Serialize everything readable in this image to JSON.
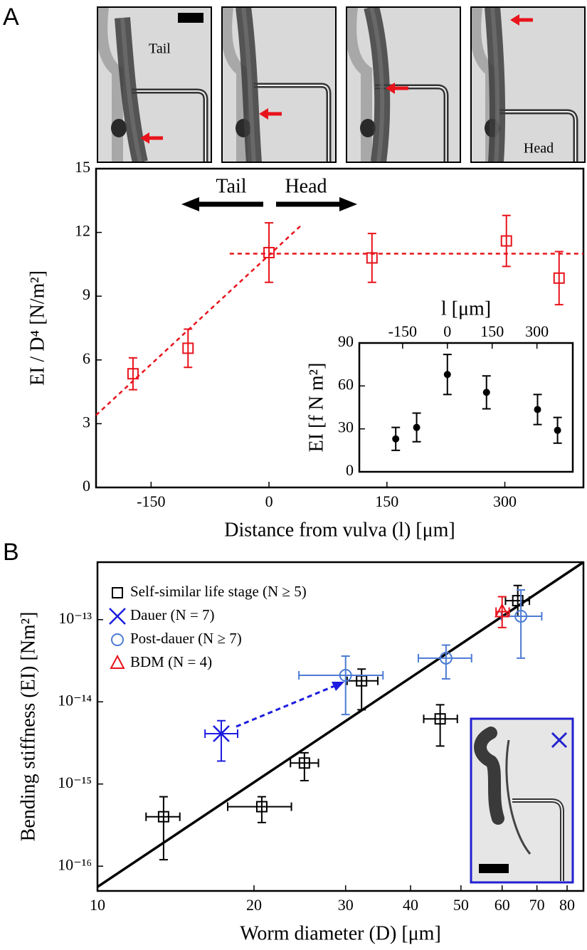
{
  "panel_labels": [
    "A",
    "B"
  ],
  "micrographs": {
    "labels": [
      "Tail",
      "Head"
    ]
  },
  "chart_data": [
    {
      "type": "scatter",
      "x_label": "Distance from vulva (l) [μm]",
      "y_label": "EI / D⁴ [N/m²]",
      "x": [
        -173,
        -103,
        0,
        131,
        302,
        369
      ],
      "values": [
        5.35,
        6.55,
        11.05,
        10.8,
        11.6,
        9.85
      ],
      "errors": [
        0.75,
        0.9,
        1.4,
        1.15,
        1.2,
        1.25
      ],
      "color": "#e8131b",
      "marker": "square",
      "xlim": [
        -220,
        400
      ],
      "ylim": [
        0,
        15
      ],
      "xticks": [
        -150,
        0,
        150,
        300
      ],
      "yticks": [
        0,
        3,
        6,
        9,
        12,
        15
      ],
      "annotations": {
        "tail": "Tail",
        "head": "Head"
      },
      "fit_lines": [
        {
          "x": [
            -220,
            40
          ],
          "y": [
            3.4,
            12.3
          ]
        },
        {
          "x": [
            -50,
            400
          ],
          "y": [
            11,
            11
          ]
        }
      ]
    },
    {
      "type": "scatter",
      "x_label": "l [μm]",
      "y_label": "EI [f N m²]",
      "x": [
        -173,
        -103,
        0,
        131,
        302,
        369
      ],
      "values": [
        23,
        31,
        68,
        55.5,
        43.5,
        29
      ],
      "errors": [
        8,
        10,
        14,
        11.5,
        10.5,
        9
      ],
      "color": "#000000",
      "marker": "dot",
      "xlim": [
        -295,
        420
      ],
      "ylim": [
        0,
        90
      ],
      "xticks": [
        -150,
        0,
        150,
        300
      ],
      "yticks": [
        0,
        30,
        60,
        90
      ]
    },
    {
      "type": "scatter",
      "x_label": "Worm diameter (D) [μm]",
      "y_label": "Bending stiffness (EI) [Nm²]",
      "log_x": true,
      "log_y": true,
      "legend": "upper left",
      "xlim": [
        10,
        86
      ],
      "ylim": [
        5e-17,
        5e-13
      ],
      "xticks": [
        10,
        20,
        30,
        40,
        50,
        60,
        70,
        80
      ],
      "yticks": [
        {
          "value": 1e-16,
          "label": "10⁻¹⁶"
        },
        {
          "value": 1e-15,
          "label": "10⁻¹⁵"
        },
        {
          "value": 1e-14,
          "label": "10⁻¹⁴"
        },
        {
          "value": 1e-13,
          "label": "10⁻¹³"
        }
      ],
      "fit_line": {
        "x": [
          10,
          86
        ],
        "y": [
          5.6e-17,
          5e-13
        ],
        "color": "#000000"
      },
      "series": [
        {
          "name": "Self-similar life stage (N ≥ 5)",
          "color": "#000000",
          "marker": "square",
          "x": [
            13.4,
            20.7,
            25.0,
            32.2,
            45.6,
            64.3
          ],
          "values": [
            4e-16,
            5.3e-16,
            1.8e-15,
            1.8e-14,
            6.2e-15,
            1.7e-13
          ],
          "xerr": [
            [
              1.0,
              1.0
            ],
            [
              2.9,
              2.9
            ],
            [
              1.5,
              1.6
            ],
            [
              2.0,
              2.4
            ],
            [
              3.2,
              3.6
            ],
            [
              3.4,
              3.4
            ]
          ],
          "yerr": [
            [
              2.8e-16,
              3e-16
            ],
            [
              1.9e-16,
              1.7e-16
            ],
            [
              7e-16,
              6e-16
            ],
            [
              1e-14,
              7e-15
            ],
            [
              3.3e-15,
              3e-15
            ],
            [
              6e-14,
              9e-14
            ]
          ]
        },
        {
          "name": "Dauer (N = 7)",
          "color": "#1c1ce0",
          "marker": "x",
          "x": [
            17.3
          ],
          "values": [
            4.1e-15
          ],
          "xerr": [
            [
              1.2,
              1.3
            ]
          ],
          "yerr": [
            [
              2.2e-15,
              1.8e-15
            ]
          ]
        },
        {
          "name": "Post-dauer (N ≥ 7)",
          "color": "#4c7bd4",
          "marker": "circle",
          "x": [
            30.0,
            46.8,
            65.2
          ],
          "values": [
            2.1e-14,
            3.4e-14,
            1.1e-13
          ],
          "xerr": [
            [
              5.6,
              5.4
            ],
            [
              5.4,
              5.6
            ],
            [
              5.4,
              6.3
            ]
          ],
          "yerr": [
            [
              1.4e-14,
              1.5e-14
            ],
            [
              1.5e-14,
              1.5e-14
            ],
            [
              7.6e-14,
              1.2e-13
            ]
          ]
        },
        {
          "name": "BDM (N =  4)",
          "color": "#e8131b",
          "marker": "triangle",
          "x": [
            60.0
          ],
          "values": [
            1.25e-13
          ],
          "xerr": [
            [
              1.6,
              1.9
            ]
          ],
          "yerr": [
            [
              4.5e-14,
              6.5e-14
            ]
          ]
        }
      ]
    }
  ]
}
